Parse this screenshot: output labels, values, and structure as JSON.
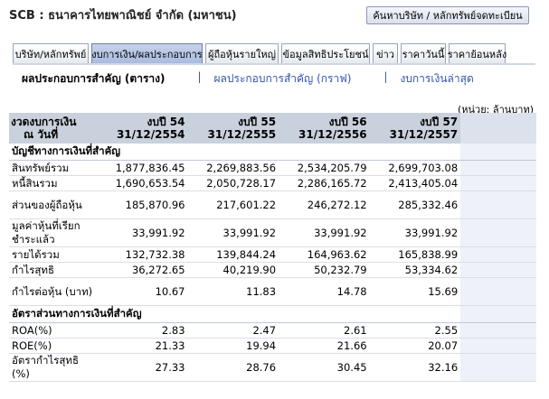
{
  "title": "SCB : ธนาคารไทยพาณิชย์ จำกัด (มหาชน)",
  "search_button": "ค้นหาบริษัท / หลักทรัพย์จดทะเบียน",
  "tabs": [
    {
      "label": "บริษัท/หลักทรัพย์",
      "w": 84
    },
    {
      "label": "งบการเงิน/ผลประกอบการ",
      "w": 123
    },
    {
      "label": "ผู้ถือหุ้นรายใหญ่",
      "w": 81
    },
    {
      "label": "ข้อมูลสิทธิประโยชน์",
      "w": 98
    },
    {
      "label": "ข่าว",
      "w": 28
    },
    {
      "label": "ราคาวันนี้",
      "w": 50
    },
    {
      "label": "ราคาย้อนหลัง",
      "w": 63
    }
  ],
  "subnav": {
    "current": "ผลประกอบการสำคัญ (ตาราง)",
    "graph": "ผลประกอบการสำคัญ (กราฟ)",
    "latest": "งบการเงินล่าสุด",
    "sep": "|"
  },
  "unit": "(หน่วย: ล้านบาท)",
  "table": {
    "header_label": [
      "งวดงบการเงิน",
      "ณ วันที่"
    ],
    "columns": [
      {
        "year": "งบปี 54",
        "date": "31/12/2554"
      },
      {
        "year": "งบปี 55",
        "date": "31/12/2555"
      },
      {
        "year": "งบปี 56",
        "date": "31/12/2556"
      },
      {
        "year": "งบปี 57",
        "date": "31/12/2557"
      }
    ],
    "section1": "บัญชีทางการเงินที่สำคัญ",
    "section2": "อัตราส่วนทางการเงินที่สำคัญ",
    "rows1": [
      {
        "label": "สินทรัพย์รวม",
        "values": [
          "1,877,836.45",
          "2,269,883.56",
          "2,534,205.79",
          "2,699,703.08"
        ]
      },
      {
        "label": "หนี้สินรวม",
        "values": [
          "1,690,653.54",
          "2,050,728.17",
          "2,286,165.72",
          "2,413,405.04"
        ]
      },
      {
        "label": "ส่วนของผู้ถือหุ้น",
        "values": [
          "185,870.96",
          "217,601.22",
          "246,272.12",
          "285,332.46"
        ]
      },
      {
        "label": "มูลค่าหุ้นที่เรียกชำระแล้ว",
        "values": [
          "33,991.92",
          "33,991.92",
          "33,991.92",
          "33,991.92"
        ]
      },
      {
        "label": "รายได้รวม",
        "values": [
          "132,732.38",
          "139,844.24",
          "164,963.62",
          "165,838.99"
        ]
      },
      {
        "label": "กำไรสุทธิ",
        "values": [
          "36,272.65",
          "40,219.90",
          "50,232.79",
          "53,334.62"
        ]
      },
      {
        "label": "กำไรต่อหุ้น (บาท)",
        "values": [
          "10.67",
          "11.83",
          "14.78",
          "15.69"
        ]
      }
    ],
    "rows2": [
      {
        "label": "ROA(%)",
        "values": [
          "2.83",
          "2.47",
          "2.61",
          "2.55"
        ]
      },
      {
        "label": "ROE(%)",
        "values": [
          "21.33",
          "19.94",
          "21.66",
          "20.07"
        ]
      },
      {
        "label": "อัตรากำไรสุทธิ (%)",
        "values": [
          "27.33",
          "28.76",
          "30.45",
          "32.16"
        ]
      }
    ]
  }
}
